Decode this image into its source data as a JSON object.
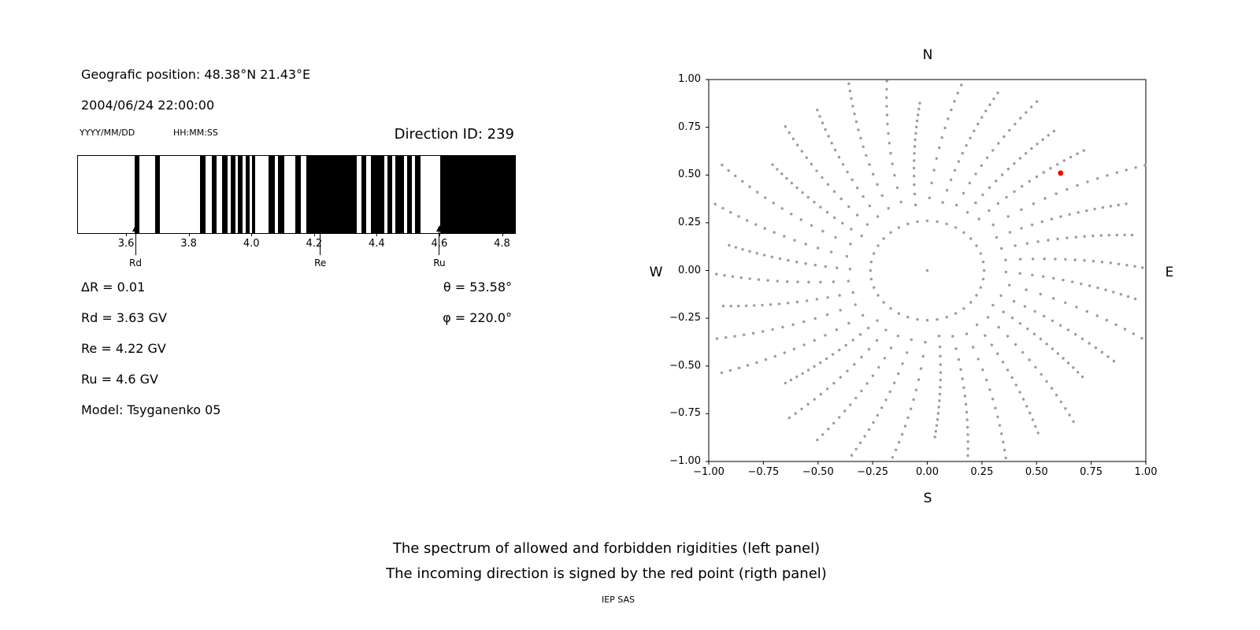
{
  "header": {
    "geo_position": "Geografic position: 48.38°N 21.43°E",
    "datetime": "2004/06/24 22:00:00",
    "date_format_label": "YYYY/MM/DD",
    "time_format_label": "HH:MM:SS",
    "direction_id": "Direction ID: 239"
  },
  "parameters": {
    "delta_r": "ΔR = 0.01",
    "rd": "Rd = 3.63 GV",
    "re": "Re = 4.22 GV",
    "ru": "Ru = 4.6 GV",
    "model": "Model: Tsyganenko 05",
    "theta": "θ = 53.58°",
    "phi": "φ = 220.0°"
  },
  "caption": {
    "line1": "The spectrum of allowed and forbidden rigidities (left panel)",
    "line2": "The incoming direction is signed by the red point (rigth panel)",
    "credit": "IEP SAS"
  },
  "chart_data": [
    {
      "type": "bar",
      "name": "rigidity-spectrum",
      "description": "Penumbra spectrum of allowed (black) and forbidden (white) rigidities in GV",
      "xlim": [
        3.444,
        4.839
      ],
      "bar_color": "#000000",
      "xticks": [
        {
          "value": 3.6,
          "label": "3.6"
        },
        {
          "value": 3.8,
          "label": "3.8"
        },
        {
          "value": 4.0,
          "label": "4.0"
        },
        {
          "value": 4.2,
          "label": "4.2"
        },
        {
          "value": 4.4,
          "label": "4.4"
        },
        {
          "value": 4.6,
          "label": "4.6"
        },
        {
          "value": 4.8,
          "label": "4.8"
        }
      ],
      "allowed_bands_gv": [
        [
          3.625,
          3.641
        ],
        [
          3.69,
          3.706
        ],
        [
          3.834,
          3.851
        ],
        [
          3.871,
          3.886
        ],
        [
          3.904,
          3.922
        ],
        [
          3.932,
          3.947
        ],
        [
          3.954,
          3.969
        ],
        [
          3.979,
          3.992
        ],
        [
          3.999,
          4.01
        ],
        [
          4.052,
          4.072
        ],
        [
          4.082,
          4.103
        ],
        [
          4.138,
          4.155
        ],
        [
          4.173,
          4.334
        ],
        [
          4.349,
          4.364
        ],
        [
          4.379,
          4.422
        ],
        [
          4.432,
          4.447
        ],
        [
          4.457,
          4.485
        ],
        [
          4.495,
          4.51
        ],
        [
          4.52,
          4.538
        ],
        [
          4.6,
          4.839
        ]
      ],
      "markers": [
        {
          "label": "Rd",
          "x": 3.63
        },
        {
          "label": "Re",
          "x": 4.22
        },
        {
          "label": "Ru",
          "x": 4.6
        }
      ]
    },
    {
      "type": "scatter",
      "name": "incoming-direction-map",
      "description": "Asymptotic direction map; red point marks the incoming direction",
      "xlim": [
        -1,
        1
      ],
      "ylim": [
        -1,
        1
      ],
      "compass": {
        "top": "N",
        "bottom": "S",
        "left": "W",
        "right": "E"
      },
      "dot_color": "#9b9b9b",
      "red_point": {
        "x": 0.61,
        "y": 0.51,
        "color": "#ff0000"
      },
      "center_dot": true,
      "spokes": {
        "count": 36,
        "inner_radius": 0.26,
        "outer_radius": 1.0,
        "points_per_spoke": 16,
        "curvature_rad": 0.22,
        "length_variation": 0.14
      },
      "xticks": [
        {
          "value": -1.0,
          "label": "−1.00"
        },
        {
          "value": -0.75,
          "label": "−0.75"
        },
        {
          "value": -0.5,
          "label": "−0.50"
        },
        {
          "value": -0.25,
          "label": "−0.25"
        },
        {
          "value": 0.0,
          "label": "0.00"
        },
        {
          "value": 0.25,
          "label": "0.25"
        },
        {
          "value": 0.5,
          "label": "0.50"
        },
        {
          "value": 0.75,
          "label": "0.75"
        },
        {
          "value": 1.0,
          "label": "1.00"
        }
      ],
      "yticks": [
        {
          "value": 1.0,
          "label": "1.00"
        },
        {
          "value": 0.75,
          "label": "0.75"
        },
        {
          "value": 0.5,
          "label": "0.50"
        },
        {
          "value": 0.25,
          "label": "0.25"
        },
        {
          "value": 0.0,
          "label": "0.00"
        },
        {
          "value": -0.25,
          "label": "−0.25"
        },
        {
          "value": -0.5,
          "label": "−0.50"
        },
        {
          "value": -0.75,
          "label": "−0.75"
        },
        {
          "value": -1.0,
          "label": "−1.00"
        }
      ]
    }
  ]
}
